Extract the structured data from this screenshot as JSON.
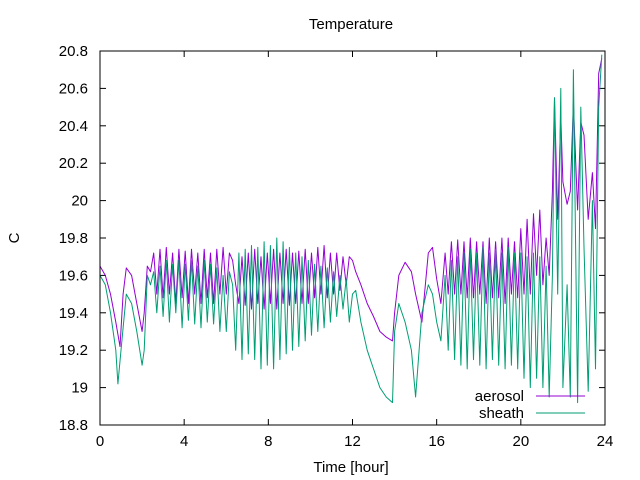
{
  "chart_data": {
    "type": "line",
    "title": "Temperature",
    "xlabel": "Time [hour]",
    "ylabel": "C",
    "xlim": [
      0,
      24
    ],
    "ylim": [
      18.8,
      20.8
    ],
    "xticks": [
      0,
      4,
      8,
      12,
      16,
      20,
      24
    ],
    "yticks": [
      18.8,
      19,
      19.2,
      19.4,
      19.6,
      19.8,
      20,
      20.2,
      20.4,
      20.6,
      20.8
    ],
    "xtick_labels": [
      "0",
      "4",
      "8",
      "12",
      "16",
      "20",
      "24"
    ],
    "ytick_labels": [
      "18.8",
      "19",
      "19.2",
      "19.4",
      "19.6",
      "19.8",
      "20",
      "20.2",
      "20.4",
      "20.6",
      "20.8"
    ],
    "grid": false,
    "legend_position": "bottom-right",
    "series": [
      {
        "name": "aerosol",
        "color": "#9400d3",
        "x": [
          0,
          0.25,
          0.5,
          0.75,
          0.95,
          1.1,
          1.25,
          1.5,
          1.75,
          2.0,
          2.1,
          2.25,
          2.4,
          2.55,
          2.7,
          2.85,
          3.0,
          3.15,
          3.3,
          3.45,
          3.6,
          3.75,
          3.9,
          4.05,
          4.2,
          4.35,
          4.5,
          4.65,
          4.8,
          4.95,
          5.1,
          5.25,
          5.4,
          5.55,
          5.7,
          5.85,
          6.0,
          6.15,
          6.3,
          6.45,
          6.6,
          6.75,
          6.9,
          7.05,
          7.2,
          7.35,
          7.5,
          7.65,
          7.8,
          7.95,
          8.1,
          8.25,
          8.4,
          8.55,
          8.7,
          8.85,
          9.0,
          9.15,
          9.3,
          9.45,
          9.6,
          9.75,
          9.9,
          10.05,
          10.2,
          10.35,
          10.5,
          10.65,
          10.8,
          10.95,
          11.1,
          11.25,
          11.4,
          11.55,
          11.7,
          11.85,
          12.0,
          12.15,
          12.4,
          12.7,
          13.0,
          13.3,
          13.6,
          13.9,
          14.0,
          14.2,
          14.5,
          14.8,
          15.0,
          15.3,
          15.6,
          15.8,
          16.0,
          16.2,
          16.4,
          16.55,
          16.7,
          16.85,
          17.0,
          17.15,
          17.3,
          17.45,
          17.6,
          17.75,
          17.9,
          18.05,
          18.2,
          18.35,
          18.5,
          18.65,
          18.8,
          18.95,
          19.1,
          19.25,
          19.4,
          19.55,
          19.7,
          19.85,
          20.0,
          20.15,
          20.3,
          20.45,
          20.6,
          20.75,
          20.9,
          21.05,
          21.2,
          21.35,
          21.5,
          21.6,
          21.75,
          21.9,
          22.0,
          22.2,
          22.35,
          22.5,
          22.7,
          22.85,
          23.0,
          23.2,
          23.4,
          23.55,
          23.7,
          23.85
        ],
        "y": [
          19.65,
          19.6,
          19.5,
          19.35,
          19.22,
          19.5,
          19.64,
          19.6,
          19.45,
          19.3,
          19.4,
          19.65,
          19.62,
          19.72,
          19.5,
          19.74,
          19.48,
          19.75,
          19.5,
          19.72,
          19.45,
          19.74,
          19.48,
          19.73,
          19.45,
          19.74,
          19.5,
          19.72,
          19.45,
          19.74,
          19.48,
          19.72,
          19.45,
          19.74,
          19.5,
          19.75,
          19.5,
          19.72,
          19.68,
          19.55,
          19.45,
          19.7,
          19.44,
          19.72,
          19.42,
          19.74,
          19.45,
          19.7,
          19.42,
          19.72,
          19.45,
          19.74,
          19.42,
          19.72,
          19.45,
          19.74,
          19.44,
          19.72,
          19.45,
          19.73,
          19.45,
          19.74,
          19.45,
          19.72,
          19.48,
          19.75,
          19.5,
          19.76,
          19.48,
          19.72,
          19.5,
          19.72,
          19.52,
          19.7,
          19.55,
          19.7,
          19.68,
          19.62,
          19.55,
          19.45,
          19.38,
          19.3,
          19.27,
          19.25,
          19.4,
          19.6,
          19.67,
          19.62,
          19.5,
          19.35,
          19.72,
          19.75,
          19.58,
          19.45,
          19.72,
          19.5,
          19.78,
          19.5,
          19.79,
          19.5,
          19.78,
          19.48,
          19.8,
          19.48,
          19.78,
          19.5,
          19.78,
          19.45,
          19.8,
          19.48,
          19.78,
          19.48,
          19.8,
          19.45,
          19.8,
          19.5,
          19.78,
          19.48,
          19.85,
          19.5,
          19.9,
          19.5,
          19.93,
          19.6,
          19.95,
          19.55,
          19.8,
          19.6,
          20.05,
          20.55,
          19.9,
          20.45,
          20.1,
          19.98,
          20.05,
          20.52,
          19.95,
          20.42,
          20.35,
          19.9,
          20.15,
          19.85,
          20.68,
          20.76
        ]
      },
      {
        "name": "sheath",
        "color": "#009e73",
        "x": [
          0,
          0.25,
          0.5,
          0.75,
          0.85,
          1.0,
          1.25,
          1.5,
          1.75,
          2.0,
          2.1,
          2.25,
          2.4,
          2.55,
          2.7,
          2.85,
          3.0,
          3.15,
          3.3,
          3.45,
          3.6,
          3.75,
          3.9,
          4.05,
          4.2,
          4.35,
          4.5,
          4.65,
          4.8,
          4.95,
          5.1,
          5.25,
          5.4,
          5.55,
          5.7,
          5.85,
          6.0,
          6.15,
          6.3,
          6.45,
          6.6,
          6.75,
          6.9,
          7.05,
          7.2,
          7.35,
          7.5,
          7.65,
          7.8,
          7.95,
          8.1,
          8.25,
          8.4,
          8.55,
          8.7,
          8.85,
          9.0,
          9.15,
          9.3,
          9.45,
          9.6,
          9.75,
          9.9,
          10.05,
          10.2,
          10.35,
          10.5,
          10.65,
          10.8,
          10.95,
          11.1,
          11.25,
          11.4,
          11.55,
          11.7,
          11.85,
          12.0,
          12.15,
          12.4,
          12.7,
          13.0,
          13.3,
          13.6,
          13.9,
          14.0,
          14.2,
          14.5,
          14.8,
          15.0,
          15.3,
          15.6,
          15.8,
          16.0,
          16.2,
          16.4,
          16.55,
          16.7,
          16.85,
          17.0,
          17.15,
          17.3,
          17.45,
          17.6,
          17.75,
          17.9,
          18.05,
          18.2,
          18.35,
          18.5,
          18.65,
          18.8,
          18.95,
          19.1,
          19.25,
          19.4,
          19.55,
          19.7,
          19.85,
          20.0,
          20.15,
          20.3,
          20.45,
          20.6,
          20.75,
          20.9,
          21.05,
          21.2,
          21.35,
          21.5,
          21.6,
          21.75,
          21.9,
          22.0,
          22.2,
          22.35,
          22.5,
          22.7,
          22.85,
          23.0,
          23.2,
          23.4,
          23.55,
          23.7,
          23.85
        ],
        "y": [
          19.6,
          19.55,
          19.4,
          19.2,
          19.02,
          19.2,
          19.5,
          19.45,
          19.3,
          19.12,
          19.2,
          19.6,
          19.55,
          19.62,
          19.4,
          19.65,
          19.38,
          19.68,
          19.35,
          19.66,
          19.4,
          19.68,
          19.32,
          19.66,
          19.36,
          19.68,
          19.34,
          19.65,
          19.32,
          19.68,
          19.35,
          19.66,
          19.34,
          19.64,
          19.3,
          19.6,
          19.3,
          19.62,
          19.55,
          19.2,
          19.72,
          19.15,
          19.74,
          19.18,
          19.76,
          19.15,
          19.75,
          19.1,
          19.78,
          19.12,
          19.76,
          19.1,
          19.8,
          19.15,
          19.78,
          19.18,
          19.75,
          19.2,
          19.72,
          19.22,
          19.7,
          19.25,
          19.68,
          19.28,
          19.66,
          19.3,
          19.65,
          19.32,
          19.64,
          19.35,
          19.62,
          19.38,
          19.6,
          19.42,
          19.58,
          19.35,
          19.5,
          19.52,
          19.35,
          19.2,
          19.1,
          19.0,
          18.95,
          18.92,
          19.3,
          19.45,
          19.35,
          19.2,
          18.95,
          19.4,
          19.55,
          19.5,
          19.35,
          19.25,
          19.6,
          19.2,
          19.68,
          19.15,
          19.7,
          19.12,
          19.72,
          19.1,
          19.74,
          19.15,
          19.72,
          19.12,
          19.75,
          19.1,
          19.72,
          19.15,
          19.74,
          19.12,
          19.72,
          19.1,
          19.75,
          19.12,
          19.72,
          19.1,
          19.72,
          19.05,
          19.7,
          19.0,
          19.72,
          19.05,
          19.7,
          19.0,
          19.65,
          18.95,
          19.6,
          20.55,
          19.5,
          20.6,
          19.0,
          19.55,
          18.95,
          20.7,
          18.92,
          20.5,
          19.75,
          18.98,
          20.0,
          19.1,
          20.5,
          20.78
        ]
      }
    ]
  }
}
